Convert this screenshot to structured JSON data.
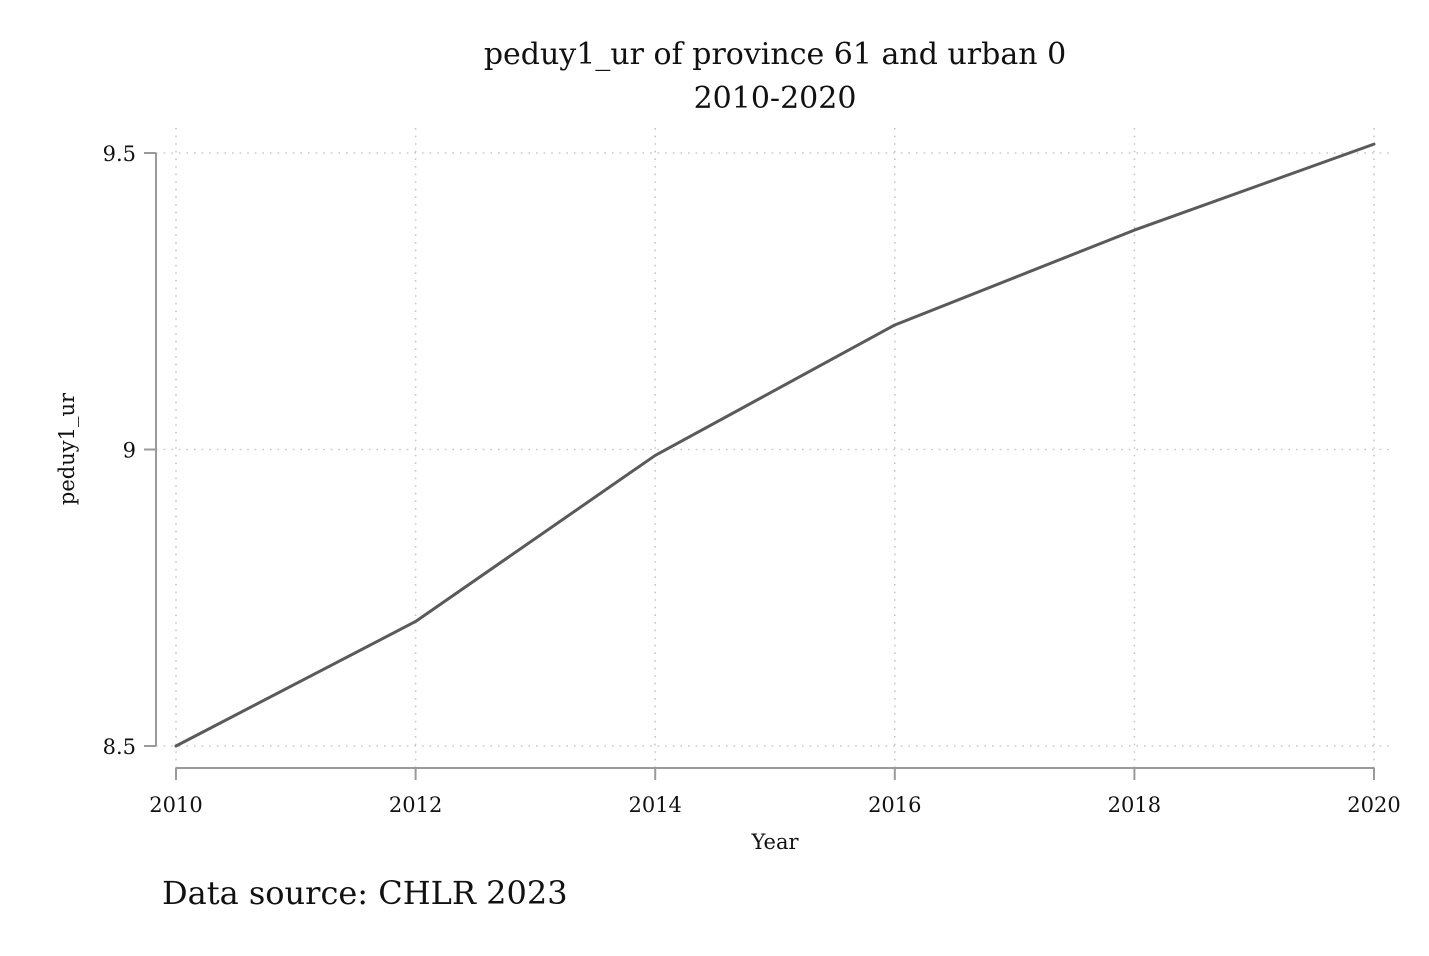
{
  "chart_data": {
    "type": "line",
    "title": "peduy1_ur of province 61 and urban 0",
    "subtitle": "2010-2020",
    "xlabel": "Year",
    "ylabel": "peduy1_ur",
    "note": "Data source: CHLR 2023",
    "x": [
      2010,
      2012,
      2014,
      2016,
      2018,
      2020
    ],
    "series": [
      {
        "values": [
          8.5,
          8.71,
          8.99,
          9.21,
          9.37,
          9.515
        ]
      }
    ],
    "xlim": [
      2010,
      2020
    ],
    "ylim": [
      8.5,
      9.5
    ],
    "xticks": [
      2010,
      2012,
      2014,
      2016,
      2018,
      2020
    ],
    "xtick_labels": [
      "2010",
      "2012",
      "2014",
      "2016",
      "2018",
      "2020"
    ],
    "yticks": [
      8.5,
      9,
      9.5
    ],
    "ytick_labels": [
      "8.5",
      "9",
      "9.5"
    ],
    "grid": true,
    "line_color": "#5a5a5a",
    "axis_color": "#9a9a9a",
    "grid_color": "#c8c8c8"
  }
}
